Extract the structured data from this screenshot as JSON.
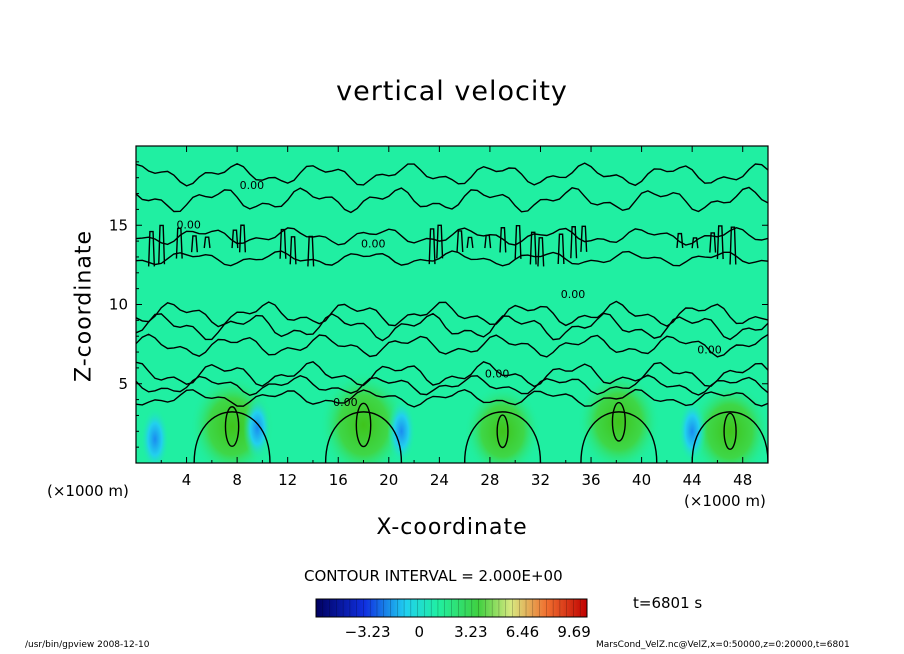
{
  "chart_data": {
    "type": "heatmap",
    "title": "vertical velocity",
    "xlabel": "X-coordinate",
    "ylabel": "Z-coordinate",
    "x_unit": "(×1000 m)",
    "xlim": [
      0,
      50
    ],
    "ylim": [
      0,
      20
    ],
    "x_ticks": [
      4,
      8,
      12,
      16,
      20,
      24,
      28,
      32,
      36,
      40,
      44,
      48
    ],
    "y_ticks": [
      5,
      10,
      15
    ],
    "contour_interval_label": "CONTOUR INTERVAL = 2.000E+00",
    "contour_label": "0.00",
    "colorbar": {
      "ticks": [
        -3.23,
        0,
        3.23,
        6.46,
        9.69
      ],
      "tick_labels": [
        "−3.23",
        "0",
        "3.23",
        "6.46",
        "9.69"
      ],
      "min": -6.46,
      "max": 10.5
    },
    "updrafts": [
      {
        "x": 7.6,
        "z": 2.3,
        "w": 2.6
      },
      {
        "x": 18.0,
        "z": 2.4,
        "w": 3.2
      },
      {
        "x": 29.0,
        "z": 2.0,
        "w": 1.4
      },
      {
        "x": 38.2,
        "z": 2.6,
        "w": 2.4
      },
      {
        "x": 47.0,
        "z": 2.0,
        "w": 2.0
      }
    ],
    "downdrafts": [
      {
        "x": 1.5,
        "z": 1.5,
        "w": -2.0
      },
      {
        "x": 9.6,
        "z": 2.2,
        "w": -2.6
      },
      {
        "x": 21.0,
        "z": 2.0,
        "w": -2.6
      },
      {
        "x": 44.0,
        "z": 2.0,
        "w": -2.2
      }
    ],
    "background_color": "#20efa2"
  },
  "annotations": {
    "time": "t=6801 s",
    "footer_left": "/usr/bin/gpview   2008-12-10",
    "footer_right": "MarsCond_VelZ.nc@VelZ,x=0:50000,z=0:20000,t=6801"
  }
}
